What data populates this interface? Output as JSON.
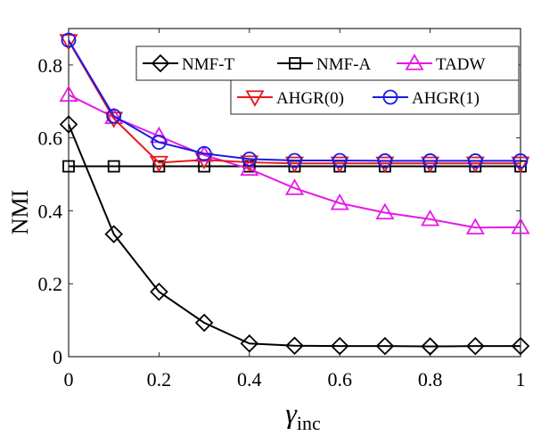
{
  "chart_data": {
    "type": "line",
    "xlabel": "γ",
    "xlabel_sub": "inc",
    "ylabel": "NMI",
    "xlim": [
      0,
      1
    ],
    "ylim": [
      0,
      0.9
    ],
    "x_ticks": [
      0,
      0.2,
      0.4,
      0.6,
      0.8,
      1
    ],
    "x_tick_labels": [
      "0",
      "0.2",
      "0.4",
      "0.6",
      "0.8",
      "1"
    ],
    "y_ticks": [
      0,
      0.2,
      0.4,
      0.6,
      0.8
    ],
    "y_tick_labels": [
      "0",
      "0.2",
      "0.4",
      "0.6",
      "0.8"
    ],
    "grid": false,
    "x": [
      0,
      0.1,
      0.2,
      0.3,
      0.4,
      0.5,
      0.6,
      0.7,
      0.8,
      0.9,
      1.0
    ],
    "series": [
      {
        "name": "NMF-T",
        "color": "#000000",
        "marker": "diamond",
        "values": [
          0.637,
          0.336,
          0.178,
          0.093,
          0.036,
          0.03,
          0.029,
          0.029,
          0.028,
          0.029,
          0.029
        ]
      },
      {
        "name": "NMF-A",
        "color": "#000000",
        "marker": "square",
        "values": [
          0.522,
          0.522,
          0.522,
          0.522,
          0.522,
          0.522,
          0.522,
          0.522,
          0.522,
          0.522,
          0.522
        ]
      },
      {
        "name": "TADW",
        "color": "#e619e6",
        "marker": "triangle-up",
        "values": [
          0.718,
          0.657,
          0.605,
          0.553,
          0.515,
          0.462,
          0.421,
          0.395,
          0.377,
          0.354,
          0.355
        ]
      },
      {
        "name": "AHGR(0)",
        "color": "#e6191e",
        "marker": "triangle-down",
        "values": [
          0.866,
          0.653,
          0.532,
          0.54,
          0.533,
          0.53,
          0.53,
          0.53,
          0.53,
          0.53,
          0.53
        ]
      },
      {
        "name": "AHGR(1)",
        "color": "#1a1ae6",
        "marker": "circle",
        "values": [
          0.868,
          0.66,
          0.588,
          0.557,
          0.542,
          0.538,
          0.538,
          0.537,
          0.537,
          0.537,
          0.537
        ]
      }
    ],
    "legend_position": "top-right"
  }
}
